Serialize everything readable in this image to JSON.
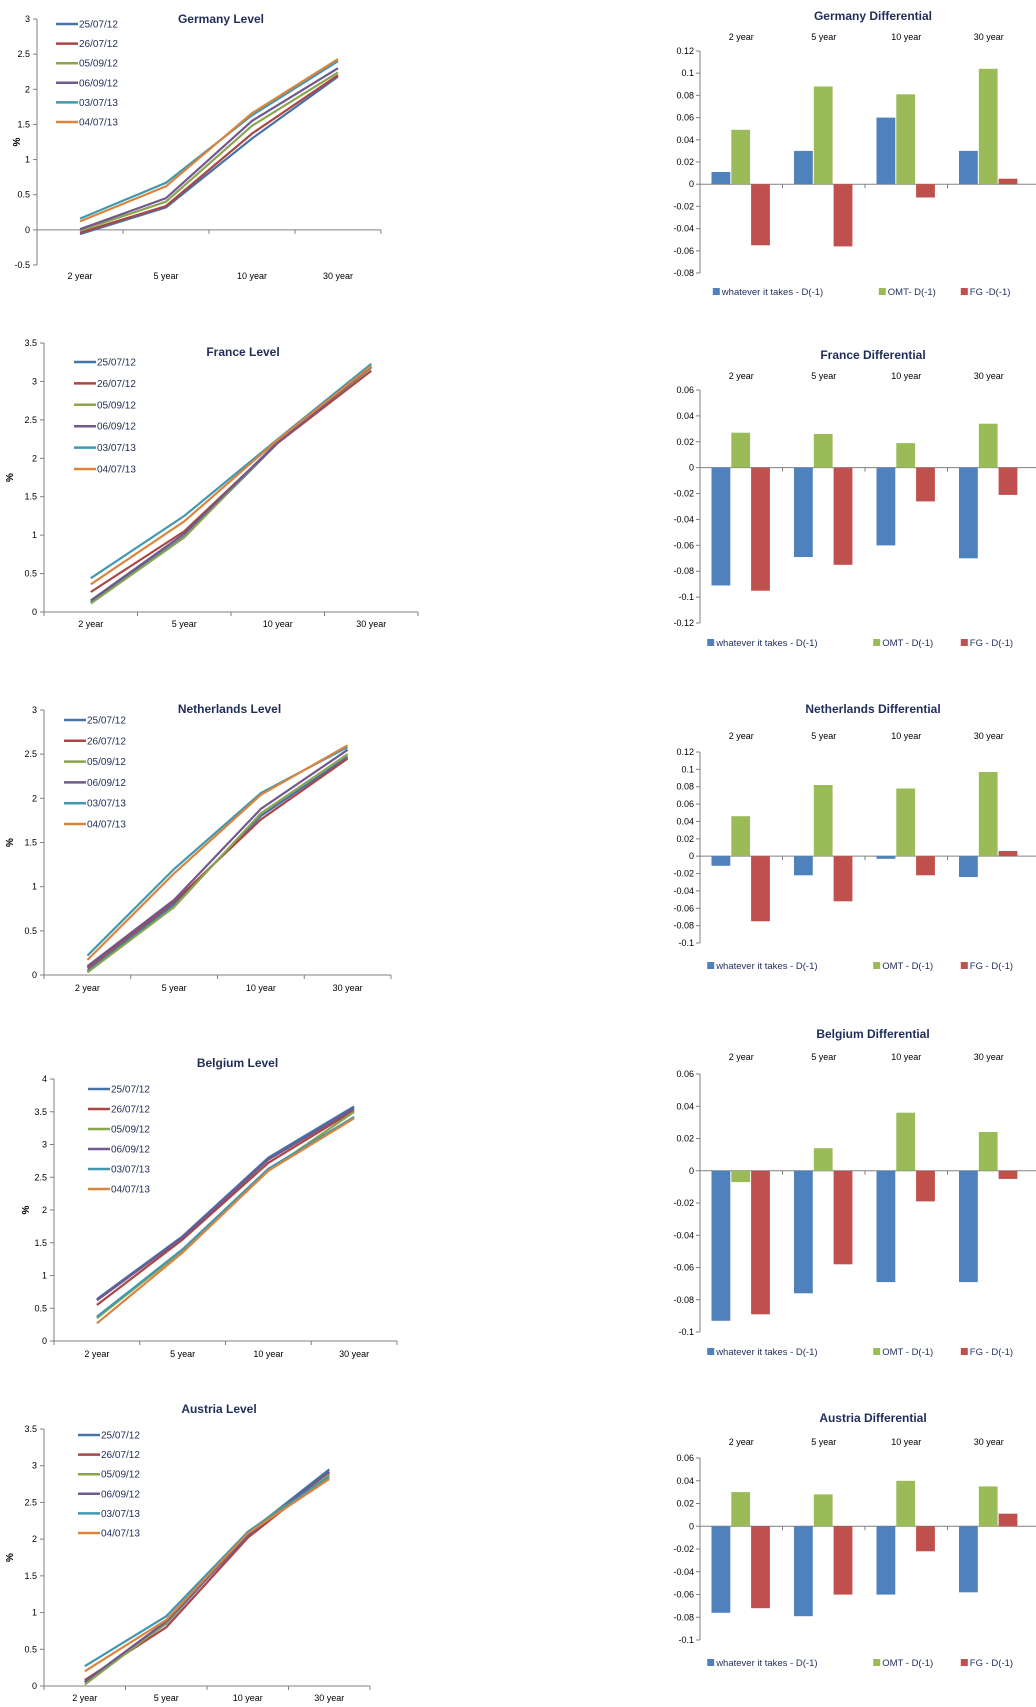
{
  "chart_data": [
    {
      "type": "line",
      "title": "Germany Level",
      "ylabel": "%",
      "categories": [
        "2 year",
        "5 year",
        "10 year",
        "30 year"
      ],
      "ylim": [
        -0.5,
        3
      ],
      "yticks": [
        "-0.5",
        "0",
        "0.5",
        "1",
        "1.5",
        "2",
        "2.5",
        "3"
      ],
      "series": [
        {
          "name": "25/07/12",
          "color": "#4572A7",
          "values": [
            -0.06,
            0.32,
            1.3,
            2.18
          ]
        },
        {
          "name": "26/07/12",
          "color": "#AA4643",
          "values": [
            -0.04,
            0.34,
            1.37,
            2.2
          ]
        },
        {
          "name": "05/09/12",
          "color": "#89A54E",
          "values": [
            -0.01,
            0.4,
            1.48,
            2.24
          ]
        },
        {
          "name": "06/09/12",
          "color": "#71588F",
          "values": [
            0.01,
            0.45,
            1.55,
            2.3
          ]
        },
        {
          "name": "03/07/13",
          "color": "#4198AF",
          "values": [
            0.16,
            0.67,
            1.63,
            2.4
          ]
        },
        {
          "name": "04/07/13",
          "color": "#DB843D",
          "values": [
            0.12,
            0.62,
            1.66,
            2.43
          ]
        }
      ]
    },
    {
      "type": "bar",
      "title": "Germany Differential",
      "categories": [
        "2 year",
        "5 year",
        "10 year",
        "30 year"
      ],
      "ylim": [
        -0.08,
        0.12
      ],
      "yticks": [
        "-0.08",
        "-0.06",
        "-0.04",
        "-0.02",
        "0",
        "0.02",
        "0.04",
        "0.06",
        "0.08",
        "0.1",
        "0.12"
      ],
      "series": [
        {
          "name": "whatever it takes - D(-1)",
          "color": "#4F81BD",
          "values": [
            0.011,
            0.03,
            0.06,
            0.03
          ]
        },
        {
          "name": "OMT- D(-1)",
          "color": "#9BBB59",
          "values": [
            0.049,
            0.088,
            0.081,
            0.104
          ]
        },
        {
          "name": "FG -D(-1)",
          "color": "#C0504D",
          "values": [
            -0.055,
            -0.056,
            -0.012,
            0.005
          ]
        }
      ]
    },
    {
      "type": "line",
      "title": "France Level",
      "ylabel": "%",
      "categories": [
        "2 year",
        "5 year",
        "10 year",
        "30 year"
      ],
      "ylim": [
        0,
        3.5
      ],
      "yticks": [
        "0",
        "0.5",
        "1",
        "1.5",
        "2",
        "2.5",
        "3",
        "3.5"
      ],
      "series": [
        {
          "name": "25/07/12",
          "color": "#4572A7",
          "values": [
            0.13,
            0.98,
            2.2,
            3.2
          ]
        },
        {
          "name": "26/07/12",
          "color": "#AA4643",
          "values": [
            0.26,
            1.05,
            2.2,
            3.14
          ]
        },
        {
          "name": "05/09/12",
          "color": "#89A54E",
          "values": [
            0.11,
            0.97,
            2.22,
            3.18
          ]
        },
        {
          "name": "06/09/12",
          "color": "#71588F",
          "values": [
            0.15,
            1.02,
            2.21,
            3.19
          ]
        },
        {
          "name": "03/07/13",
          "color": "#4198AF",
          "values": [
            0.44,
            1.25,
            2.25,
            3.23
          ]
        },
        {
          "name": "04/07/13",
          "color": "#DB843D",
          "values": [
            0.36,
            1.18,
            2.24,
            3.2
          ]
        }
      ]
    },
    {
      "type": "bar",
      "title": "France Differential",
      "categories": [
        "2 year",
        "5 year",
        "10 year",
        "30 year"
      ],
      "ylim": [
        -0.12,
        0.06
      ],
      "yticks": [
        "-0.12",
        "-0.1",
        "-0.08",
        "-0.06",
        "-0.04",
        "-0.02",
        "0",
        "0.02",
        "0.04",
        "0.06"
      ],
      "series": [
        {
          "name": "whatever it takes - D(-1)",
          "color": "#4F81BD",
          "values": [
            -0.091,
            -0.069,
            -0.06,
            -0.07
          ]
        },
        {
          "name": "OMT - D(-1)",
          "color": "#9BBB59",
          "values": [
            0.027,
            0.026,
            0.019,
            0.034
          ]
        },
        {
          "name": "FG - D(-1)",
          "color": "#C0504D",
          "values": [
            -0.095,
            -0.075,
            -0.026,
            -0.021
          ]
        }
      ]
    },
    {
      "type": "line",
      "title": "Netherlands Level",
      "ylabel": "%",
      "categories": [
        "2 year",
        "5 year",
        "10 year",
        "30 year"
      ],
      "ylim": [
        0,
        3
      ],
      "yticks": [
        "0",
        "0.5",
        "1",
        "1.5",
        "2",
        "2.5",
        "3"
      ],
      "series": [
        {
          "name": "25/07/12",
          "color": "#4572A7",
          "values": [
            0.05,
            0.8,
            1.8,
            2.47
          ]
        },
        {
          "name": "26/07/12",
          "color": "#AA4643",
          "values": [
            0.08,
            0.83,
            1.76,
            2.45
          ]
        },
        {
          "name": "05/09/12",
          "color": "#89A54E",
          "values": [
            0.03,
            0.77,
            1.83,
            2.5
          ]
        },
        {
          "name": "06/09/12",
          "color": "#71588F",
          "values": [
            0.1,
            0.85,
            1.88,
            2.55
          ]
        },
        {
          "name": "03/07/13",
          "color": "#4198AF",
          "values": [
            0.22,
            1.2,
            2.06,
            2.58
          ]
        },
        {
          "name": "04/07/13",
          "color": "#DB843D",
          "values": [
            0.17,
            1.15,
            2.04,
            2.6
          ]
        }
      ]
    },
    {
      "type": "bar",
      "title": "Netherlands Differential",
      "categories": [
        "2 year",
        "5 year",
        "10 year",
        "30 year"
      ],
      "ylim": [
        -0.1,
        0.12
      ],
      "yticks": [
        "-0.1",
        "-0.08",
        "-0.06",
        "-0.04",
        "-0.02",
        "0",
        "0.02",
        "0.04",
        "0.06",
        "0.08",
        "0.1",
        "0.12"
      ],
      "series": [
        {
          "name": "whatever it takes - D(-1)",
          "color": "#4F81BD",
          "values": [
            -0.011,
            -0.022,
            -0.003,
            -0.024
          ]
        },
        {
          "name": "OMT - D(-1)",
          "color": "#9BBB59",
          "values": [
            0.046,
            0.082,
            0.078,
            0.097
          ]
        },
        {
          "name": "FG - D(-1)",
          "color": "#C0504D",
          "values": [
            -0.075,
            -0.052,
            -0.022,
            0.006
          ]
        }
      ]
    },
    {
      "type": "line",
      "title": "Belgium Level",
      "ylabel": "%",
      "categories": [
        "2 year",
        "5 year",
        "10 year",
        "30 year"
      ],
      "ylim": [
        0,
        4
      ],
      "yticks": [
        "0",
        "0.5",
        "1",
        "1.5",
        "2",
        "2.5",
        "3",
        "3.5",
        "4"
      ],
      "series": [
        {
          "name": "25/07/12",
          "color": "#4572A7",
          "values": [
            0.64,
            1.6,
            2.8,
            3.58
          ]
        },
        {
          "name": "26/07/12",
          "color": "#AA4643",
          "values": [
            0.55,
            1.55,
            2.72,
            3.52
          ]
        },
        {
          "name": "05/09/12",
          "color": "#89A54E",
          "values": [
            0.35,
            1.38,
            2.6,
            3.5
          ]
        },
        {
          "name": "06/09/12",
          "color": "#71588F",
          "values": [
            0.62,
            1.58,
            2.77,
            3.55
          ]
        },
        {
          "name": "03/07/13",
          "color": "#4198AF",
          "values": [
            0.37,
            1.4,
            2.63,
            3.42
          ]
        },
        {
          "name": "04/07/13",
          "color": "#DB843D",
          "values": [
            0.27,
            1.35,
            2.6,
            3.4
          ]
        }
      ]
    },
    {
      "type": "bar",
      "title": "Belgium Differential",
      "categories": [
        "2 year",
        "5 year",
        "10 year",
        "30 year"
      ],
      "ylim": [
        -0.1,
        0.06
      ],
      "yticks": [
        "-0.1",
        "-0.08",
        "-0.06",
        "-0.04",
        "-0.02",
        "0",
        "0.02",
        "0.04",
        "0.06"
      ],
      "series": [
        {
          "name": "whatever it takes - D(-1)",
          "color": "#4F81BD",
          "values": [
            -0.093,
            -0.076,
            -0.069,
            -0.069
          ]
        },
        {
          "name": "OMT - D(-1)",
          "color": "#9BBB59",
          "values": [
            -0.007,
            0.014,
            0.036,
            0.024
          ]
        },
        {
          "name": "FG - D(-1)",
          "color": "#C0504D",
          "values": [
            -0.089,
            -0.058,
            -0.019,
            -0.005
          ]
        }
      ]
    },
    {
      "type": "line",
      "title": "Austria Level",
      "ylabel": "%",
      "categories": [
        "2 year",
        "5 year",
        "10 year",
        "30 year"
      ],
      "ylim": [
        0,
        3.5
      ],
      "yticks": [
        "0",
        "0.5",
        "1",
        "1.5",
        "2",
        "2.5",
        "3",
        "3.5"
      ],
      "series": [
        {
          "name": "25/07/12",
          "color": "#4572A7",
          "values": [
            0.05,
            0.85,
            2.08,
            2.95
          ]
        },
        {
          "name": "26/07/12",
          "color": "#AA4643",
          "values": [
            0.08,
            0.8,
            2.02,
            2.9
          ]
        },
        {
          "name": "05/09/12",
          "color": "#89A54E",
          "values": [
            0.02,
            0.86,
            2.1,
            2.88
          ]
        },
        {
          "name": "06/09/12",
          "color": "#71588F",
          "values": [
            0.06,
            0.88,
            2.05,
            2.92
          ]
        },
        {
          "name": "03/07/13",
          "color": "#4198AF",
          "values": [
            0.27,
            0.95,
            2.1,
            2.85
          ]
        },
        {
          "name": "04/07/13",
          "color": "#DB843D",
          "values": [
            0.2,
            0.9,
            2.08,
            2.82
          ]
        }
      ]
    },
    {
      "type": "bar",
      "title": "Austria Differential",
      "categories": [
        "2 year",
        "5 year",
        "10 year",
        "30 year"
      ],
      "ylim": [
        -0.1,
        0.06
      ],
      "yticks": [
        "-0.1",
        "-0.08",
        "-0.06",
        "-0.04",
        "-0.02",
        "0",
        "0.02",
        "0.04",
        "0.06"
      ],
      "series": [
        {
          "name": "whatever it takes - D(-1)",
          "color": "#4F81BD",
          "values": [
            -0.076,
            -0.079,
            -0.06,
            -0.058
          ]
        },
        {
          "name": "OMT - D(-1)",
          "color": "#9BBB59",
          "values": [
            0.03,
            0.028,
            0.04,
            0.035
          ]
        },
        {
          "name": "FG - D(-1)",
          "color": "#C0504D",
          "values": [
            -0.072,
            -0.06,
            -0.022,
            0.011
          ]
        }
      ]
    }
  ]
}
